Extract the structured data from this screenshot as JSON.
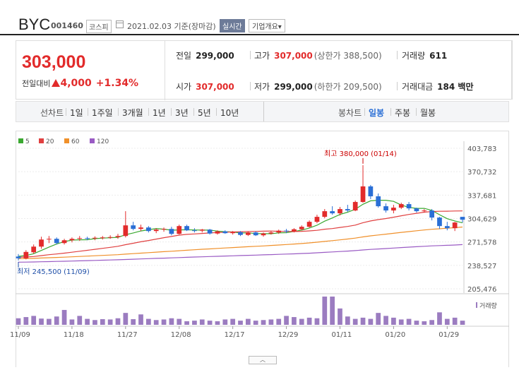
{
  "header": {
    "name": "BYC",
    "code": "001460",
    "market": "코스피",
    "date": "2021.02.03 기준(장마감)",
    "realtime": "실시간",
    "company": "기업개요▾"
  },
  "quote": {
    "price": "303,000",
    "prev_label": "전일대비",
    "change": "4,000",
    "change_pct": "+1.34%",
    "prev_close_label": "전일",
    "prev_close": "299,000",
    "high_label": "고가",
    "high": "307,000",
    "upper_limit": "(상한가 388,500)",
    "volume_label": "거래량",
    "volume": "611",
    "open_label": "시가",
    "open": "307,000",
    "low_label": "저가",
    "low": "299,000",
    "lower_limit": "(하한가 209,500)",
    "amount_label": "거래대금",
    "amount": "184 백만"
  },
  "period": {
    "line_label": "선차트",
    "line_tabs": [
      "1일",
      "1주일",
      "3개월",
      "1년",
      "3년",
      "5년",
      "10년"
    ],
    "candle_label": "봉차트",
    "candle_tabs": [
      "일봉",
      "주봉",
      "월봉"
    ],
    "active_candle": "일봉"
  },
  "colors": {
    "up": "#e22b2b",
    "down": "#2a6fd6",
    "ma5": "#3aa830",
    "ma20": "#e04040",
    "ma60": "#f0902a",
    "ma120": "#9a5bc4"
  },
  "scroll_tab": "︿",
  "chart_data": {
    "type": "candlestick",
    "legend": [
      {
        "name": "5",
        "color": "#3aa830"
      },
      {
        "name": "20",
        "color": "#e04040"
      },
      {
        "name": "60",
        "color": "#f0902a"
      },
      {
        "name": "120",
        "color": "#9a5bc4"
      }
    ],
    "y_ticks": [
      "403,783",
      "370,732",
      "337,681",
      "304,629",
      "271,578",
      "238,527",
      "205,476"
    ],
    "y_tick_values": [
      403783,
      370732,
      337681,
      304629,
      271578,
      238527,
      205476
    ],
    "ylim": [
      205476,
      403783
    ],
    "x_ticks": [
      "11/09",
      "11/18",
      "11/27",
      "12/08",
      "12/17",
      "12/29",
      "01/11",
      "01/20",
      "01/29"
    ],
    "x_tick_index": [
      0,
      7,
      14,
      21,
      28,
      35,
      42,
      49,
      56
    ],
    "volume_label": "거래량",
    "annotations": {
      "high": {
        "text": "최고 380,000 (01/14)",
        "index": 45,
        "value": 380000
      },
      "low": {
        "text": "최저 245,500 (11/09)",
        "index": 0,
        "value": 245500
      }
    },
    "candles": [
      [
        0,
        251000,
        254500,
        245500,
        248500
      ],
      [
        1,
        248500,
        260000,
        247000,
        257500
      ],
      [
        2,
        257000,
        268000,
        255000,
        265000
      ],
      [
        3,
        265000,
        279000,
        262000,
        275000
      ],
      [
        4,
        275000,
        280000,
        270000,
        276000
      ],
      [
        5,
        276000,
        278000,
        268000,
        270000
      ],
      [
        6,
        270000,
        276000,
        268000,
        274000
      ],
      [
        7,
        274000,
        278000,
        271000,
        276000
      ],
      [
        8,
        276000,
        280000,
        273000,
        277000
      ],
      [
        9,
        277000,
        279000,
        274000,
        276500
      ],
      [
        10,
        276500,
        279500,
        274000,
        277500
      ],
      [
        11,
        277500,
        280000,
        275000,
        278000
      ],
      [
        12,
        278000,
        281000,
        276000,
        278500
      ],
      [
        13,
        278500,
        283000,
        276000,
        280000
      ],
      [
        14,
        280000,
        315000,
        278000,
        295000
      ],
      [
        15,
        295000,
        300000,
        288000,
        290000
      ],
      [
        16,
        290000,
        296000,
        287000,
        292000
      ],
      [
        17,
        292000,
        294000,
        285000,
        287000
      ],
      [
        18,
        287000,
        291000,
        284000,
        289000
      ],
      [
        19,
        289000,
        292000,
        286000,
        290000
      ],
      [
        20,
        290000,
        293000,
        281000,
        283000
      ],
      [
        21,
        283000,
        296000,
        282000,
        294000
      ],
      [
        22,
        294000,
        296000,
        287000,
        288000
      ],
      [
        23,
        288000,
        291000,
        285000,
        287500
      ],
      [
        24,
        287500,
        290000,
        285000,
        289000
      ],
      [
        25,
        289000,
        290000,
        282000,
        283500
      ],
      [
        26,
        283500,
        288000,
        282000,
        286500
      ],
      [
        27,
        286500,
        288000,
        283000,
        284000
      ],
      [
        28,
        284000,
        287000,
        282000,
        285500
      ],
      [
        29,
        285500,
        287000,
        280000,
        281500
      ],
      [
        30,
        281500,
        286000,
        280000,
        285000
      ],
      [
        31,
        285000,
        286500,
        280000,
        281000
      ],
      [
        32,
        281000,
        285000,
        279000,
        283500
      ],
      [
        33,
        283500,
        287000,
        282000,
        285000
      ],
      [
        34,
        285000,
        289000,
        283000,
        287500
      ],
      [
        35,
        287500,
        290000,
        284000,
        286500
      ],
      [
        36,
        286500,
        291000,
        285000,
        289500
      ],
      [
        37,
        289500,
        295000,
        288000,
        293000
      ],
      [
        38,
        293000,
        302000,
        292000,
        300000
      ],
      [
        39,
        300000,
        310000,
        298000,
        307000
      ],
      [
        40,
        307000,
        318000,
        305000,
        315000
      ],
      [
        41,
        315000,
        322000,
        310000,
        312000
      ],
      [
        42,
        312000,
        321000,
        309000,
        318000
      ],
      [
        43,
        318000,
        324000,
        314000,
        316000
      ],
      [
        44,
        316000,
        330000,
        315000,
        328000
      ],
      [
        45,
        328000,
        380000,
        327000,
        350000
      ],
      [
        46,
        350000,
        352000,
        332000,
        336000
      ],
      [
        47,
        336000,
        340000,
        320000,
        322000
      ],
      [
        48,
        322000,
        326000,
        313000,
        316000
      ],
      [
        49,
        316000,
        324000,
        312000,
        320000
      ],
      [
        50,
        320000,
        327000,
        318000,
        325000
      ],
      [
        51,
        325000,
        328000,
        316000,
        319000
      ],
      [
        52,
        319000,
        320000,
        313000,
        315000
      ],
      [
        53,
        315000,
        318000,
        313000,
        316000
      ],
      [
        54,
        316000,
        318000,
        302000,
        306000
      ],
      [
        55,
        306000,
        307000,
        290000,
        294000
      ],
      [
        56,
        294000,
        300000,
        288000,
        291000
      ],
      [
        57,
        291000,
        300000,
        287000,
        299000
      ],
      [
        58,
        307000,
        307000,
        299000,
        303000
      ]
    ],
    "volumes": [
      22,
      26,
      30,
      21,
      20,
      28,
      50,
      18,
      30,
      20,
      16,
      19,
      18,
      22,
      40,
      19,
      35,
      20,
      16,
      18,
      22,
      20,
      12,
      14,
      18,
      14,
      12,
      18,
      20,
      14,
      20,
      14,
      16,
      18,
      20,
      30,
      26,
      20,
      24,
      22,
      95,
      95,
      55,
      28,
      20,
      24,
      20,
      40,
      30,
      24,
      18,
      20,
      14,
      12,
      16,
      42,
      20,
      24,
      14
    ]
  }
}
